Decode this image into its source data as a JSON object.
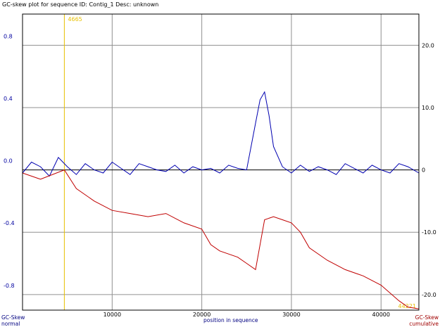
{
  "chart_data": {
    "type": "line",
    "title": "GC-skew plot for sequence ID: Contig_1 Desc: unknown",
    "xlabel": "position in sequence",
    "x_range": [
      0,
      44221
    ],
    "x_ticks": [
      10000,
      20000,
      30000,
      40000
    ],
    "x_tick_labels": [
      "10000",
      "20000",
      "30000",
      "40000"
    ],
    "left_axis": {
      "label_line1": "GC-Skew",
      "label_line2": "normal",
      "color": "#0000a0",
      "range": [
        -0.9,
        1.0
      ],
      "ticks": [
        0.8,
        0.4,
        0.0,
        -0.4,
        -0.8
      ],
      "tick_labels": [
        "0.8",
        "0.4",
        "0.0",
        "-0.4",
        "-0.8"
      ]
    },
    "right_axis": {
      "label_line1": "GC-Skew",
      "label_line2": "cumulative",
      "color": "#a00000",
      "range": [
        -22.5,
        25.0
      ],
      "ticks": [
        20,
        10,
        0,
        -10,
        -20
      ],
      "tick_labels": [
        "20.0",
        "10.0",
        "0",
        "-10.0",
        "-20.0"
      ]
    },
    "markers": [
      {
        "label": "4665",
        "x": 4665,
        "color": "#e8c000"
      },
      {
        "label": "44221",
        "x": 44221,
        "color": "#e8c000"
      }
    ],
    "grid": true,
    "series": [
      {
        "axis": "left",
        "color": "#0000b0",
        "x": [
          0,
          1000,
          2000,
          3000,
          4000,
          5000,
          6000,
          7000,
          8000,
          9000,
          10000,
          11000,
          12000,
          13000,
          14000,
          15000,
          16000,
          17000,
          18000,
          19000,
          20000,
          21000,
          22000,
          23000,
          24000,
          25000,
          26000,
          26500,
          27000,
          27500,
          28000,
          29000,
          30000,
          31000,
          32000,
          33000,
          34000,
          35000,
          36000,
          37000,
          38000,
          39000,
          40000,
          41000,
          42000,
          43000,
          44221
        ],
        "y": [
          -0.02,
          0.05,
          0.02,
          -0.04,
          0.08,
          0.02,
          -0.03,
          0.04,
          0.0,
          -0.02,
          0.05,
          0.01,
          -0.03,
          0.04,
          0.02,
          0.0,
          -0.01,
          0.03,
          -0.02,
          0.02,
          0.0,
          0.01,
          -0.02,
          0.03,
          0.01,
          0.0,
          0.3,
          0.45,
          0.5,
          0.35,
          0.15,
          0.02,
          -0.02,
          0.03,
          -0.01,
          0.02,
          0.0,
          -0.03,
          0.04,
          0.01,
          -0.02,
          0.03,
          0.0,
          -0.02,
          0.04,
          0.02,
          -0.02
        ]
      },
      {
        "axis": "right",
        "color": "#c00000",
        "x": [
          0,
          2000,
          4665,
          6000,
          8000,
          10000,
          12000,
          14000,
          16000,
          18000,
          20000,
          21000,
          22000,
          24000,
          25000,
          26000,
          27000,
          28000,
          29000,
          30000,
          31000,
          32000,
          34000,
          36000,
          38000,
          40000,
          42000,
          43000,
          44221
        ],
        "y": [
          -0.5,
          -1.5,
          0.0,
          -3.0,
          -5.0,
          -6.5,
          -7.0,
          -7.5,
          -7.0,
          -8.5,
          -9.5,
          -12.0,
          -13.0,
          -14.0,
          -15.0,
          -16.0,
          -8.0,
          -7.5,
          -8.0,
          -8.5,
          -10.0,
          -12.5,
          -14.5,
          -16.0,
          -17.0,
          -18.5,
          -21.0,
          -22.0,
          -22.3
        ]
      }
    ]
  }
}
